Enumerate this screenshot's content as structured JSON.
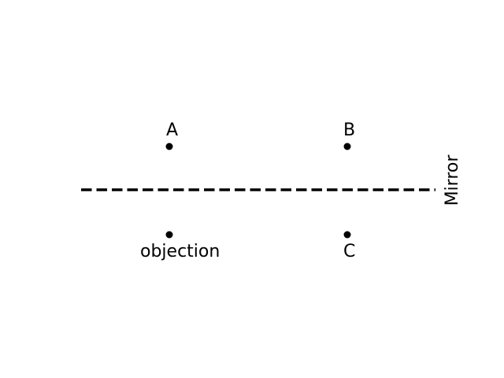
{
  "diagram": {
    "points": [
      {
        "id": "A",
        "label": "A"
      },
      {
        "id": "B",
        "label": "B"
      },
      {
        "id": "objection",
        "label": "objection"
      },
      {
        "id": "C",
        "label": "C"
      }
    ],
    "mirror": {
      "label": "Mirror",
      "line_style": "dashed"
    },
    "colors": {
      "ink": "#000000",
      "background": "#ffffff"
    }
  }
}
